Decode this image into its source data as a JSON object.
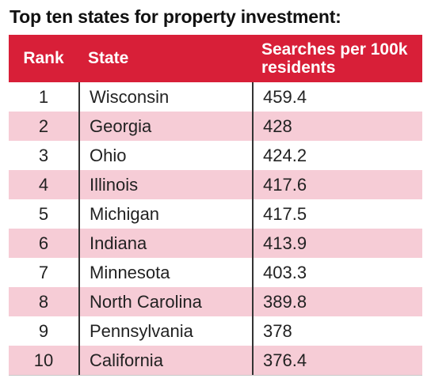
{
  "title": "Top ten states for property investment:",
  "chart_data": {
    "type": "table",
    "title": "Top ten states for property investment:",
    "columns": [
      "Rank",
      "State",
      "Searches per 100k residents"
    ],
    "rows": [
      {
        "rank": "1",
        "state": "Wisconsin",
        "searches": "459.4"
      },
      {
        "rank": "2",
        "state": "Georgia",
        "searches": "428"
      },
      {
        "rank": "3",
        "state": "Ohio",
        "searches": "424.2"
      },
      {
        "rank": "4",
        "state": "Illinois",
        "searches": "417.6"
      },
      {
        "rank": "5",
        "state": "Michigan",
        "searches": "417.5"
      },
      {
        "rank": "6",
        "state": "Indiana",
        "searches": "413.9"
      },
      {
        "rank": "7",
        "state": "Minnesota",
        "searches": "403.3"
      },
      {
        "rank": "8",
        "state": "North Carolina",
        "searches": "389.8"
      },
      {
        "rank": "9",
        "state": "Pennsylvania",
        "searches": "378"
      },
      {
        "rank": "10",
        "state": "California",
        "searches": "376.4"
      }
    ]
  },
  "colors": {
    "header_bg": "#d81f38",
    "header_text": "#ffffff",
    "stripe": "#f6ccd6"
  }
}
